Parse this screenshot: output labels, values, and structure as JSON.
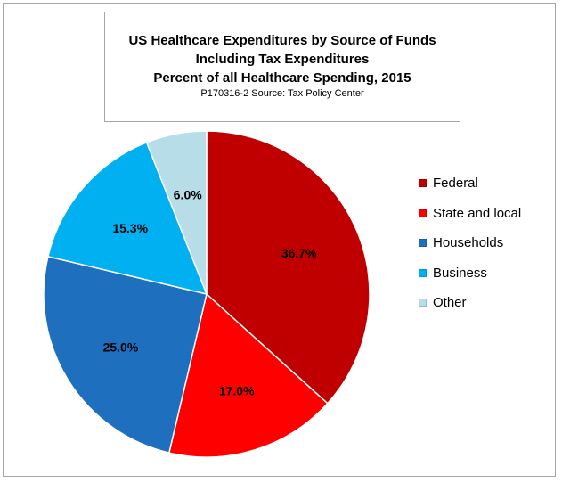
{
  "chart_data": {
    "type": "pie",
    "title": "US Healthcare Expenditures  by Source of Funds",
    "subtitle_lines": [
      "Including Tax Expenditures",
      "Percent of all Healthcare Spending, 2015"
    ],
    "note": "P170316-2  Source: Tax Policy Center",
    "legend_position": "right",
    "slices": [
      {
        "name": "Federal",
        "value": 36.7,
        "label": "36.7%",
        "color": "#c00000"
      },
      {
        "name": "State and local",
        "value": 17.0,
        "label": "17.0%",
        "color": "#ff0000"
      },
      {
        "name": "Households",
        "value": 25.0,
        "label": "25.0%",
        "color": "#1f6fbf"
      },
      {
        "name": "Business",
        "value": 15.3,
        "label": "15.3%",
        "color": "#00b0f0"
      },
      {
        "name": "Other",
        "value": 6.0,
        "label": "6.0%",
        "color": "#b7dde8"
      }
    ]
  }
}
